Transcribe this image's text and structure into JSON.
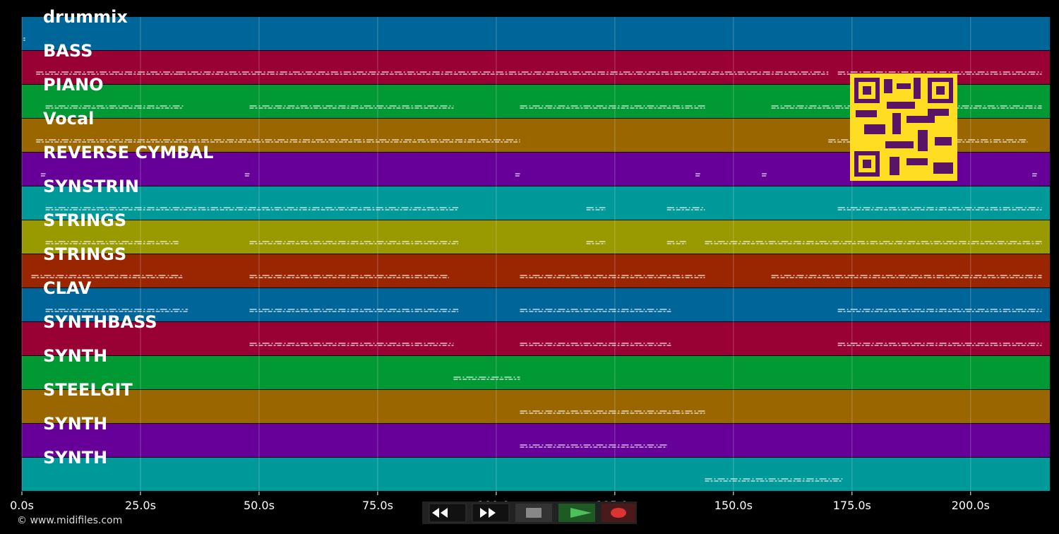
{
  "timeline": {
    "xlim": [
      0,
      216.7
    ],
    "xticks": [
      {
        "value": 0,
        "label": "0.0s"
      },
      {
        "value": 25,
        "label": "25.0s"
      },
      {
        "value": 50,
        "label": "50.0s"
      },
      {
        "value": 75,
        "label": "75.0s"
      },
      {
        "value": 100,
        "label": "100.0s"
      },
      {
        "value": 125,
        "label": "125.0s"
      },
      {
        "value": 150,
        "label": "150.0s"
      },
      {
        "value": 175,
        "label": "175.0s"
      },
      {
        "value": 200,
        "label": "200.0s"
      }
    ],
    "grid": true,
    "tracks": [
      {
        "name": "drummix",
        "color": "#006699",
        "segments": [
          [
            0.3,
            0.7
          ]
        ]
      },
      {
        "name": "BASS",
        "color": "#990033",
        "segments": [
          [
            3,
            33
          ],
          [
            33,
            170
          ],
          [
            172,
            215
          ]
        ]
      },
      {
        "name": "PIANO",
        "color": "#009933",
        "segments": [
          [
            5,
            34
          ],
          [
            48,
            91
          ],
          [
            105,
            144
          ],
          [
            158,
            215
          ]
        ]
      },
      {
        "name": "Vocal",
        "color": "#996600",
        "segments": [
          [
            3,
            105
          ],
          [
            170,
            212
          ]
        ]
      },
      {
        "name": "REVERSE CYMBAL",
        "color": "#660099",
        "segments": [
          [
            4,
            5
          ],
          [
            47,
            48
          ],
          [
            104,
            105
          ],
          [
            142,
            143
          ],
          [
            156,
            157
          ],
          [
            213,
            214
          ]
        ]
      },
      {
        "name": "SYNSTRIN",
        "color": "#009999",
        "segments": [
          [
            5,
            92
          ],
          [
            119,
            123
          ],
          [
            136,
            144
          ],
          [
            172,
            215
          ]
        ]
      },
      {
        "name": "STRINGS",
        "color": "#999900",
        "segments": [
          [
            5,
            33
          ],
          [
            48,
            92
          ],
          [
            119,
            123
          ],
          [
            136,
            140
          ],
          [
            144,
            215
          ]
        ]
      },
      {
        "name": "STRINGS",
        "color": "#992600",
        "segments": [
          [
            2,
            34
          ],
          [
            48,
            90
          ],
          [
            105,
            144
          ],
          [
            158,
            215
          ]
        ]
      },
      {
        "name": "CLAV",
        "color": "#006699",
        "segments": [
          [
            5,
            35
          ],
          [
            48,
            92
          ],
          [
            105,
            137
          ],
          [
            172,
            215
          ]
        ]
      },
      {
        "name": "SYNTHBASS",
        "color": "#990033",
        "segments": [
          [
            48,
            91
          ],
          [
            105,
            137
          ],
          [
            172,
            215
          ]
        ]
      },
      {
        "name": "SYNTH",
        "color": "#009933",
        "segments": [
          [
            91,
            105
          ]
        ]
      },
      {
        "name": "STEELGIT",
        "color": "#996600",
        "segments": [
          [
            105,
            144
          ]
        ]
      },
      {
        "name": "SYNTH",
        "color": "#660099",
        "segments": [
          [
            105,
            136
          ]
        ]
      },
      {
        "name": "SYNTH",
        "color": "#009999",
        "segments": [
          [
            144,
            173
          ]
        ]
      }
    ]
  },
  "footer": {
    "copyright": "© www.midifiles.com"
  }
}
